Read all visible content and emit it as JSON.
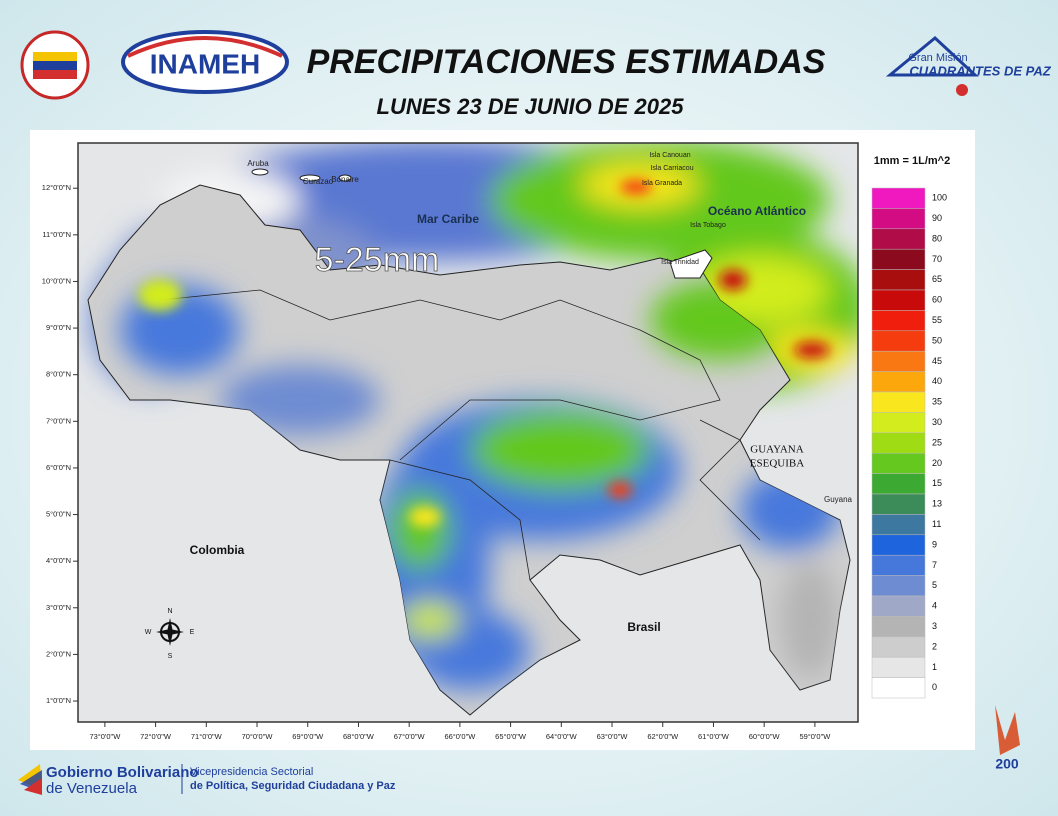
{
  "header": {
    "title": "PRECIPITACIONES ESTIMADAS",
    "subtitle": "LUNES 23 DE JUNIO DE 2025",
    "logo_left": "INAMEH",
    "logo_right_top": "Gran Misión",
    "logo_right_bottom": "CUADRANTES DE PAZ"
  },
  "map": {
    "annotation": "5-25mm",
    "xlim": [
      -73.53,
      -58.15
    ],
    "ylim": [
      0.55,
      12.97
    ],
    "xticks": [
      {
        "value": -73,
        "label": "73°0'0\"W"
      },
      {
        "value": -72,
        "label": "72°0'0\"W"
      },
      {
        "value": -71,
        "label": "71°0'0\"W"
      },
      {
        "value": -70,
        "label": "70°0'0\"W"
      },
      {
        "value": -69,
        "label": "69°0'0\"W"
      },
      {
        "value": -68,
        "label": "68°0'0\"W"
      },
      {
        "value": -67,
        "label": "67°0'0\"W"
      },
      {
        "value": -66,
        "label": "66°0'0\"W"
      },
      {
        "value": -65,
        "label": "65°0'0\"W"
      },
      {
        "value": -64,
        "label": "64°0'0\"W"
      },
      {
        "value": -63,
        "label": "63°0'0\"W"
      },
      {
        "value": -62,
        "label": "62°0'0\"W"
      },
      {
        "value": -61,
        "label": "61°0'0\"W"
      },
      {
        "value": -60,
        "label": "60°0'0\"W"
      },
      {
        "value": -59,
        "label": "59°0'0\"W"
      }
    ],
    "yticks": [
      {
        "value": 12,
        "label": "12°0'0\"N"
      },
      {
        "value": 11,
        "label": "11°0'0\"N"
      },
      {
        "value": 10,
        "label": "10°0'0\"N"
      },
      {
        "value": 9,
        "label": "9°0'0\"N"
      },
      {
        "value": 8,
        "label": "8°0'0\"N"
      },
      {
        "value": 7,
        "label": "7°0'0\"N"
      },
      {
        "value": 6,
        "label": "6°0'0\"N"
      },
      {
        "value": 5,
        "label": "5°0'0\"N"
      },
      {
        "value": 4,
        "label": "4°0'0\"N"
      },
      {
        "value": 3,
        "label": "3°0'0\"N"
      },
      {
        "value": 2,
        "label": "2°0'0\"N"
      },
      {
        "value": 1,
        "label": "1°0'0\"N"
      }
    ],
    "labels": [
      "Aruba",
      "Curazao",
      "Bonaire",
      "Isla Canouan",
      "Isla Carriacou",
      "Isla Granada",
      "Mar Caribe",
      "Océano Atlántico",
      "Isla Tobago",
      "Isla Trinidad",
      "Colombia",
      "Brasil",
      "GUAYANA",
      "ESEQUIBA",
      "Guyana"
    ],
    "compass": [
      "N",
      "S",
      "E",
      "W"
    ]
  },
  "legend": {
    "title": "1mm = 1L/m^2",
    "levels": [
      100,
      90,
      80,
      70,
      65,
      60,
      55,
      50,
      45,
      40,
      35,
      30,
      25,
      20,
      15,
      13,
      11,
      9,
      7,
      5,
      4,
      3,
      2,
      1,
      0
    ],
    "colors": [
      "#f019c0",
      "#d40c84",
      "#b00c48",
      "#8c0a1e",
      "#a80e0e",
      "#c80a0a",
      "#f01e0c",
      "#f53c0f",
      "#fa7814",
      "#fca80c",
      "#fae61e",
      "#d2ec1e",
      "#a0dc14",
      "#64c81e",
      "#3caa32",
      "#3c8c5a",
      "#3c78a0",
      "#1e64dc",
      "#4678dc",
      "#6e8cd2",
      "#a0a8c8",
      "#b4b4b4",
      "#cdcdcd",
      "#e6e6e6",
      "#ffffff"
    ]
  },
  "footer": {
    "gov_line1": "Gobierno Bolivariano",
    "gov_line2": "de Venezuela",
    "vice_line1": "Vicepresidencia Sectorial",
    "vice_line2": "de Política, Seguridad Ciudadana y Paz",
    "badge": "200"
  }
}
